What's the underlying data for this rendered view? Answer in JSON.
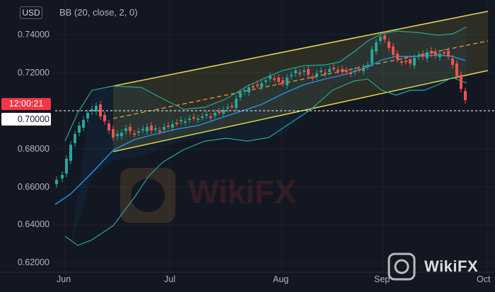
{
  "header": {
    "currency": "USD",
    "indicator": "BB (20, close, 2, 0)"
  },
  "price_axis": {
    "labels": [
      "0.74000",
      "0.72000",
      "0.68000",
      "0.66000",
      "0.64000",
      "0.62000"
    ]
  },
  "tags": {
    "countdown": "12:00:21",
    "current_price": "0.70000"
  },
  "time_axis": {
    "labels": [
      "Jun",
      "Jul",
      "Aug",
      "Sep",
      "Oct"
    ]
  },
  "watermark": {
    "brand": "WikiFX"
  },
  "colors": {
    "background": "#131722",
    "up_candle": "#26a69a",
    "down_candle": "#ef5350",
    "basis": "#2196f3",
    "bands": "#26a69a",
    "channel": "#e6d84a",
    "channel_fill": "#7a6b1c"
  }
}
